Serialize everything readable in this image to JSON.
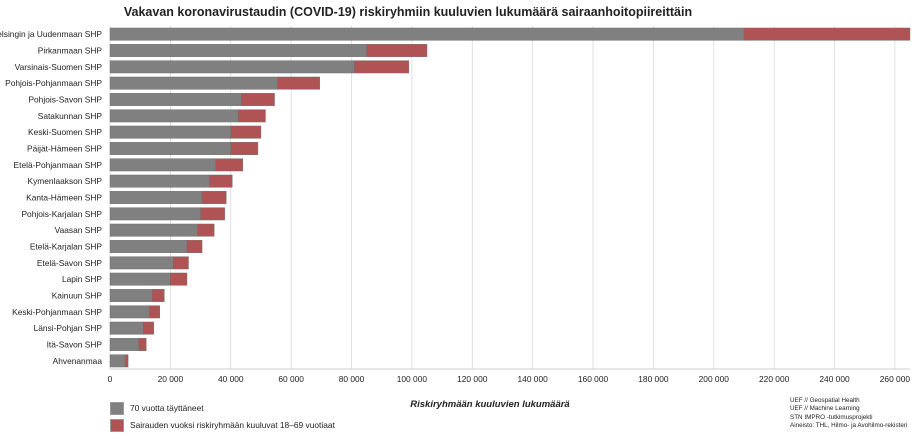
{
  "chart_data": {
    "type": "bar",
    "orientation": "horizontal",
    "stacked": true,
    "title": "Vakavan koronavirustaudin (COVID-19) riskiryhmiin kuuluvien lukumäärä sairaanhoitopiireittäin",
    "xlabel": "Riskiryhmään kuuluvien lukumäärä",
    "ylabel": "",
    "xlim": [
      0,
      265000
    ],
    "xticks": [
      0,
      20000,
      40000,
      60000,
      80000,
      100000,
      120000,
      140000,
      160000,
      180000,
      200000,
      220000,
      240000,
      260000
    ],
    "xtick_labels": [
      "0",
      "20 000",
      "40 000",
      "60 000",
      "80 000",
      "100 000",
      "120 000",
      "140 000",
      "160 000",
      "180 000",
      "200 000",
      "220 000",
      "240 000",
      "260 000"
    ],
    "grid": "vertical",
    "legend_position": "bottom-left",
    "categories": [
      "Helsingin ja Uudenmaan SHP",
      "Pirkanmaan SHP",
      "Varsinais-Suomen SHP",
      "Pohjois-Pohjanmaan SHP",
      "Pohjois-Savon SHP",
      "Satakunnan SHP",
      "Keski-Suomen SHP",
      "Päijät-Hämeen SHP",
      "Etelä-Pohjanmaan SHP",
      "Kymenlaakson SHP",
      "Kanta-Hämeen SHP",
      "Pohjois-Karjalan SHP",
      "Vaasan SHP",
      "Etelä-Karjalan SHP",
      "Etelä-Savon SHP",
      "Lapin SHP",
      "Kainuun SHP",
      "Keski-Pohjanmaan SHP",
      "Länsi-Pohjan SHP",
      "Itä-Savon SHP",
      "Ahvenanmaa"
    ],
    "series": [
      {
        "name": "70 vuotta täyttäneet",
        "color": "#808080",
        "values": [
          210000,
          85000,
          81000,
          55500,
          43500,
          42500,
          40000,
          40000,
          35000,
          33000,
          30500,
          30000,
          29000,
          25500,
          21000,
          20000,
          14000,
          13000,
          11000,
          9500,
          5000
        ]
      },
      {
        "name": "Sairauden vuoksi riskiryhmään kuuluvat 18–69 vuotiaat",
        "color": "#b05354",
        "values": [
          55000,
          20000,
          18000,
          14000,
          11000,
          9000,
          10000,
          9000,
          9000,
          7500,
          8000,
          8000,
          5500,
          5000,
          5000,
          5500,
          4000,
          3500,
          3500,
          2500,
          1000
        ]
      }
    ]
  },
  "credits": [
    "UEF // Geospatial Health",
    "UEF // Machine Learning",
    "STN IMPRO -tutkimusprojekti",
    "Aineisto: THL, Hilmo- ja Avohilmo-rekisteri"
  ]
}
